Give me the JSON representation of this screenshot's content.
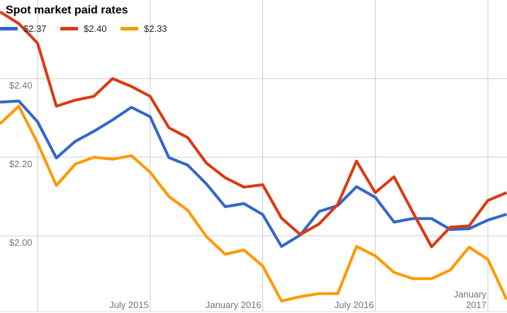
{
  "title": "Spot market paid rates",
  "chart_data": {
    "type": "line",
    "title": "Spot market paid rates",
    "xlabel": "",
    "ylabel": "",
    "grid": true,
    "legend_position": "top-left",
    "ylim": [
      1.82,
      2.6
    ],
    "x": [
      "Nov 2014",
      "Dec 2014",
      "Jan 2015",
      "Feb 2015",
      "Mar 2015",
      "Apr 2015",
      "May 2015",
      "Jun 2015",
      "Jul 2015",
      "Aug 2015",
      "Sep 2015",
      "Oct 2015",
      "Nov 2015",
      "Dec 2015",
      "Jan 2016",
      "Feb 2016",
      "Mar 2016",
      "Apr 2016",
      "May 2016",
      "Jun 2016",
      "Jul 2016",
      "Aug 2016",
      "Sep 2016",
      "Oct 2016",
      "Nov 2016",
      "Dec 2016",
      "Jan 2017",
      "Feb 2017"
    ],
    "series": [
      {
        "name": "$2.37",
        "color": "#3366cc",
        "values": [
          2.34,
          2.343,
          2.29,
          2.198,
          2.24,
          2.266,
          2.295,
          2.327,
          2.303,
          2.199,
          2.18,
          2.132,
          2.074,
          2.082,
          2.054,
          1.973,
          2.002,
          2.062,
          2.077,
          2.125,
          2.098,
          2.035,
          2.044,
          2.044,
          2.016,
          2.018,
          2.04,
          2.055
        ]
      },
      {
        "name": "$2.40",
        "color": "#dc3912",
        "values": [
          2.57,
          2.54,
          2.49,
          2.33,
          2.345,
          2.355,
          2.4,
          2.38,
          2.355,
          2.275,
          2.25,
          2.185,
          2.148,
          2.124,
          2.13,
          2.045,
          2.003,
          2.03,
          2.08,
          2.19,
          2.11,
          2.15,
          2.06,
          1.972,
          2.022,
          2.025,
          2.09,
          2.11
        ]
      },
      {
        "name": "$2.33",
        "color": "#ff9900",
        "values": [
          2.285,
          2.33,
          2.236,
          2.128,
          2.182,
          2.2,
          2.195,
          2.204,
          2.162,
          2.1,
          2.065,
          1.998,
          1.953,
          1.964,
          1.923,
          1.834,
          1.845,
          1.853,
          1.853,
          1.973,
          1.949,
          1.907,
          1.891,
          1.891,
          1.913,
          1.971,
          1.94,
          1.838
        ]
      }
    ],
    "y_ticks": [
      {
        "label": "$2.40",
        "value": 2.4
      },
      {
        "label": "$2.20",
        "value": 2.2
      },
      {
        "label": "$2.00",
        "value": 2.0
      }
    ],
    "x_ticks": [
      {
        "month_index": 8,
        "label": "July 2015"
      },
      {
        "month_index": 14,
        "label": "January 2016"
      },
      {
        "month_index": 20,
        "label": "July 2016"
      },
      {
        "month_index": 26,
        "label": "January 2017"
      }
    ]
  }
}
